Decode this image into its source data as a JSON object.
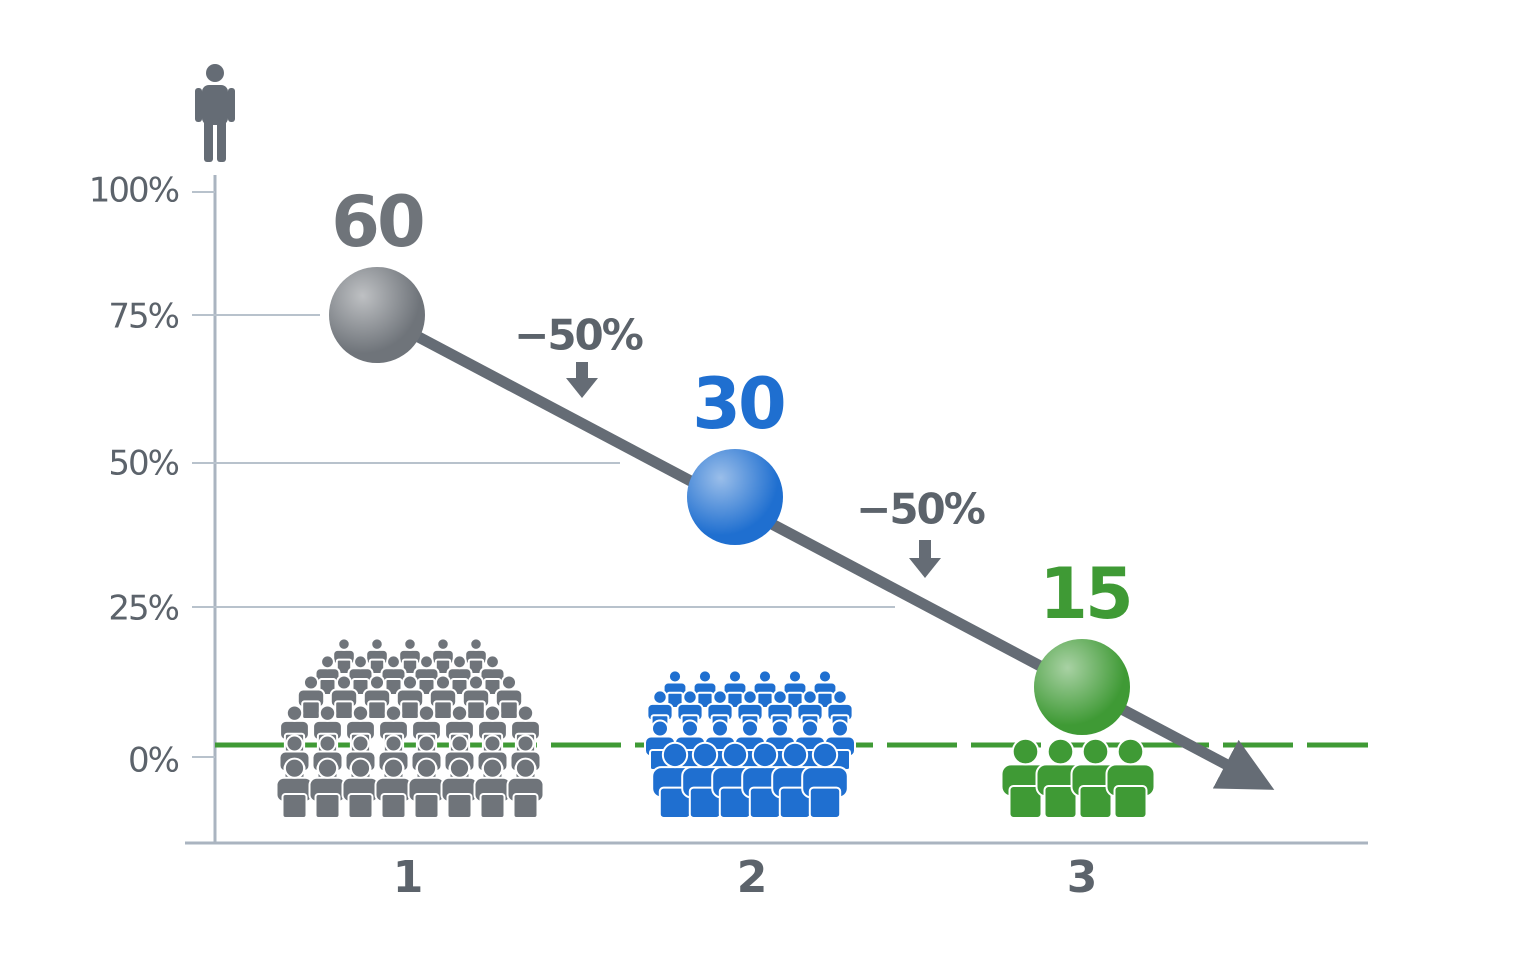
{
  "y_axis": {
    "ticks": [
      "100%",
      "75%",
      "50%",
      "25%",
      "0%"
    ]
  },
  "x_axis": {
    "ticks": [
      "1",
      "2",
      "3"
    ]
  },
  "points": [
    {
      "label": "60",
      "color": "#6f747a"
    },
    {
      "label": "30",
      "color": "#1f6fd0"
    },
    {
      "label": "15",
      "color": "#3f9a35"
    }
  ],
  "changes": [
    "−50%",
    "−50%"
  ]
}
